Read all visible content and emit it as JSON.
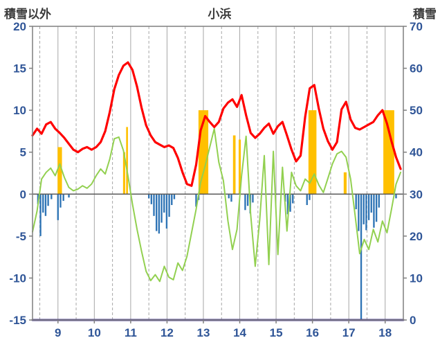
{
  "titles": {
    "left_axis_title": "積雪以外",
    "station": "小浜",
    "right_axis_title": "積雪"
  },
  "colors": {
    "axis_text": "#2f5597",
    "title_text": "#3a3a3a",
    "grid": "#a6a6a6",
    "border": "#7f7f7f",
    "zero_line": "#595959"
  },
  "chart_data": {
    "type": "line",
    "title": "小浜",
    "left_axis_label": "積雪以外",
    "right_axis_label": "積雪",
    "x_range": [
      8.3,
      18.5
    ],
    "x_ticks": [
      9,
      10,
      11,
      12,
      13,
      14,
      15,
      16,
      17,
      18
    ],
    "left_axis": {
      "min": -15,
      "max": 20,
      "ticks": [
        20,
        15,
        10,
        5,
        0,
        -5,
        -10,
        -15
      ]
    },
    "right_axis": {
      "min": 0,
      "max": 70,
      "ticks": [
        70,
        60,
        50,
        40,
        30,
        20,
        10,
        0
      ]
    },
    "grid": {
      "vertical_solid_step": 1,
      "vertical_dashed_step": 0.5,
      "horizontal": false
    },
    "series": [
      {
        "name": "sunshine-bars",
        "type": "bar",
        "axis": "left",
        "color": "#ffc000",
        "points": [
          [
            9.05,
            5.6,
            0.12
          ],
          [
            10.82,
            5.0,
            0.06
          ],
          [
            10.9,
            8.0,
            0.05
          ],
          [
            13.0,
            10.0,
            0.27
          ],
          [
            13.85,
            7.0,
            0.07
          ],
          [
            14.0,
            6.5,
            0.06
          ],
          [
            16.0,
            10.0,
            0.22
          ],
          [
            16.9,
            2.6,
            0.08
          ],
          [
            18.1,
            10.0,
            0.3
          ]
        ]
      },
      {
        "name": "precipitation-bars",
        "type": "bar",
        "axis": "left",
        "color": "#2e74b5",
        "bar_width": 0.045,
        "points": [
          [
            8.45,
            -1.2
          ],
          [
            8.52,
            -5.0
          ],
          [
            8.59,
            -2.2
          ],
          [
            8.66,
            -2.6
          ],
          [
            8.73,
            -1.4
          ],
          [
            8.82,
            -0.6
          ],
          [
            9.0,
            -3.1
          ],
          [
            9.07,
            -1.6
          ],
          [
            9.15,
            -0.8
          ],
          [
            9.3,
            -0.4
          ],
          [
            11.5,
            -0.5
          ],
          [
            11.57,
            -1.2
          ],
          [
            11.64,
            -2.6
          ],
          [
            11.71,
            -4.4
          ],
          [
            11.78,
            -4.7
          ],
          [
            11.85,
            -3.4
          ],
          [
            11.92,
            -2.2
          ],
          [
            11.99,
            -4.1
          ],
          [
            12.06,
            -2.7
          ],
          [
            12.13,
            -1.3
          ],
          [
            12.2,
            -0.6
          ],
          [
            12.8,
            -1.5
          ],
          [
            12.87,
            -0.7
          ],
          [
            13.7,
            -0.5
          ],
          [
            13.77,
            -0.9
          ],
          [
            14.15,
            -1.9
          ],
          [
            14.22,
            -1.4
          ],
          [
            14.29,
            -2.3
          ],
          [
            14.36,
            -1.0
          ],
          [
            15.25,
            -0.9
          ],
          [
            15.32,
            -2.4
          ],
          [
            15.39,
            -2.1
          ],
          [
            15.46,
            -1.1
          ],
          [
            15.85,
            -1.3
          ],
          [
            15.92,
            -0.7
          ],
          [
            17.2,
            -1.8
          ],
          [
            17.27,
            -4.4
          ],
          [
            17.34,
            -15.0
          ],
          [
            17.41,
            -3.6
          ],
          [
            17.48,
            -4.3
          ],
          [
            17.55,
            -3.1
          ],
          [
            17.62,
            -2.2
          ],
          [
            17.69,
            -4.0
          ],
          [
            17.76,
            -3.3
          ],
          [
            17.83,
            -1.6
          ],
          [
            18.3,
            -0.5
          ]
        ]
      },
      {
        "name": "green-line",
        "type": "line",
        "axis": "left",
        "color": "#92d050",
        "width": 2,
        "x_start": 8.3,
        "step": 0.125,
        "values": [
          -4.5,
          -2.0,
          1.8,
          2.6,
          3.1,
          2.2,
          3.6,
          2.0,
          0.8,
          0.4,
          0.6,
          1.0,
          0.7,
          1.2,
          2.2,
          3.0,
          2.4,
          4.2,
          6.6,
          6.8,
          5.2,
          2.2,
          -1.2,
          -4.2,
          -6.8,
          -9.2,
          -10.3,
          -9.6,
          -10.4,
          -8.6,
          -9.9,
          -10.2,
          -8.2,
          -9.1,
          -7.4,
          -4.6,
          -1.8,
          1.4,
          3.4,
          5.6,
          7.8,
          3.8,
          1.6,
          -3.2,
          -6.6,
          -4.2,
          2.2,
          6.9,
          -2.4,
          -8.6,
          -3.1,
          4.6,
          -8.4,
          5.1,
          -7.2,
          3.2,
          -4.4,
          2.6,
          1.0,
          0.4,
          1.8,
          1.3,
          2.4,
          1.1,
          0.2,
          1.9,
          3.6,
          4.8,
          5.1,
          4.4,
          1.8,
          -2.6,
          -7.1,
          -5.4,
          -6.6,
          -4.2,
          -5.7,
          -3.2,
          -4.6,
          -1.8,
          1.2,
          2.6
        ]
      },
      {
        "name": "temperature-line",
        "type": "line",
        "axis": "left",
        "color": "#ff0000",
        "width": 3.2,
        "x_start": 8.3,
        "step": 0.125,
        "values": [
          7.0,
          7.8,
          7.2,
          8.3,
          8.6,
          7.8,
          7.3,
          6.7,
          6.0,
          5.3,
          5.0,
          5.4,
          5.6,
          5.3,
          5.6,
          6.2,
          7.5,
          9.8,
          12.5,
          14.2,
          15.3,
          15.7,
          14.8,
          12.8,
          10.3,
          8.2,
          7.0,
          6.2,
          5.9,
          5.6,
          5.8,
          5.5,
          4.3,
          2.6,
          1.2,
          1.0,
          3.5,
          7.6,
          9.3,
          8.6,
          8.0,
          8.6,
          10.2,
          10.9,
          11.3,
          10.4,
          11.8,
          9.4,
          7.3,
          6.7,
          7.2,
          7.9,
          8.4,
          7.2,
          8.1,
          8.6,
          7.0,
          5.3,
          3.9,
          4.6,
          9.2,
          12.6,
          13.0,
          10.2,
          7.8,
          6.3,
          5.3,
          6.2,
          10.1,
          11.0,
          8.9,
          7.9,
          7.7,
          8.0,
          8.3,
          8.6,
          9.4,
          10.0,
          8.4,
          6.3,
          4.4,
          3.0
        ]
      },
      {
        "name": "snow-depth-line",
        "type": "line",
        "axis": "right",
        "color": "#4b3c8f",
        "width": 3,
        "x": [
          8.3,
          18.5
        ],
        "values": [
          0,
          0
        ]
      }
    ]
  }
}
